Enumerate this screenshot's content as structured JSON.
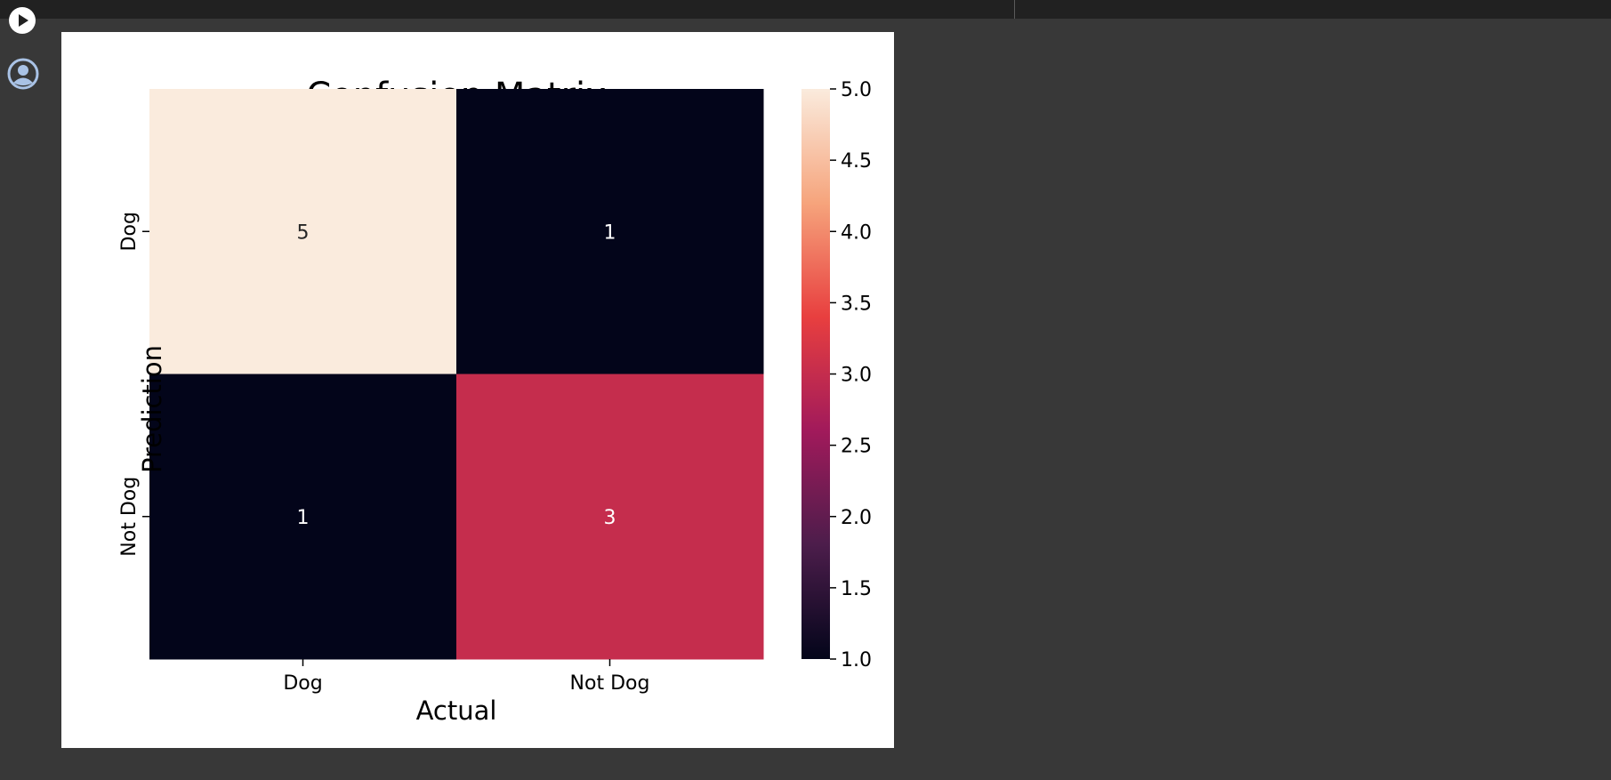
{
  "toolbar": {
    "run_icon": "play-circle-icon",
    "user_icon": "user-circle-icon"
  },
  "colors": {
    "page_bg": "#383838",
    "topbar_bg": "#212121",
    "sidebar_icon": "#a9c2e5",
    "cmap": [
      "#03051a",
      "#4c1d4b",
      "#a11a5b",
      "#e83f3f",
      "#f6a47c",
      "#faebdd"
    ]
  },
  "chart_data": {
    "type": "heatmap",
    "title": "Confusion Matrix",
    "xlabel": "Actual",
    "ylabel": "Prediction",
    "x_categories": [
      "Dog",
      "Not Dog"
    ],
    "y_categories": [
      "Dog",
      "Not Dog"
    ],
    "values": [
      [
        5,
        1
      ],
      [
        1,
        3
      ]
    ],
    "annotations": [
      [
        "5",
        "1"
      ],
      [
        "1",
        "3"
      ]
    ],
    "vmin": 1.0,
    "vmax": 5.0,
    "colorbar_ticks": [
      "1.0",
      "1.5",
      "2.0",
      "2.5",
      "3.0",
      "3.5",
      "4.0",
      "4.5",
      "5.0"
    ]
  }
}
